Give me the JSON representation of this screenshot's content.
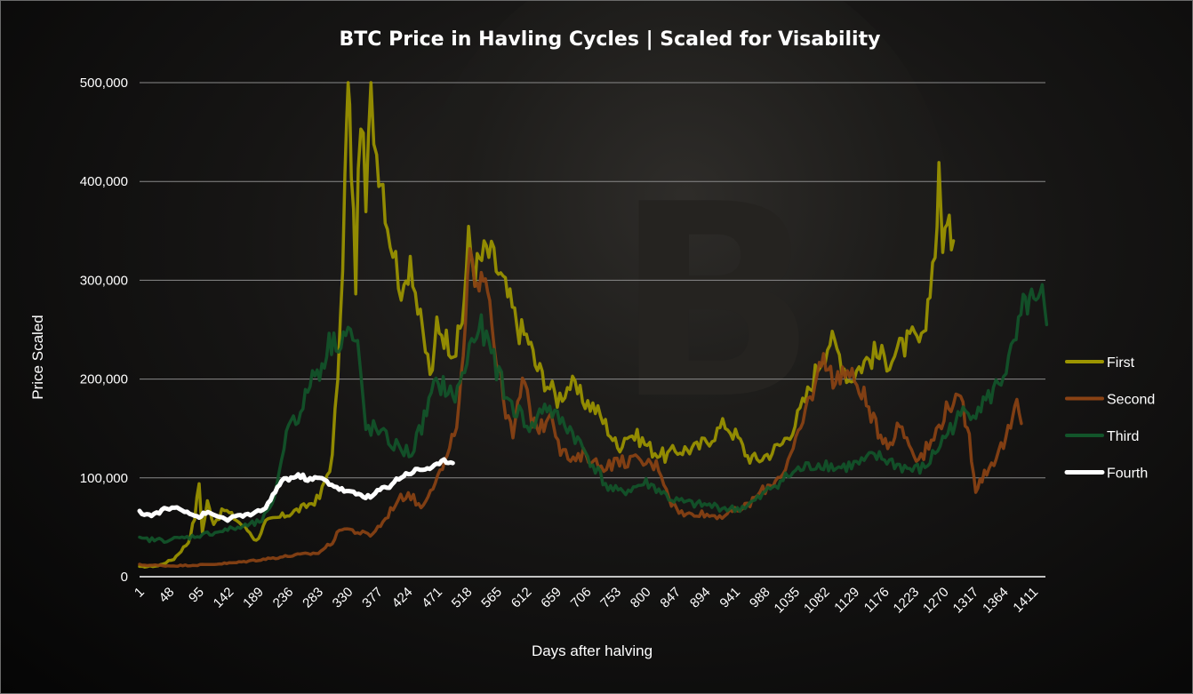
{
  "chart_data": {
    "type": "line",
    "title": "BTC Price in Havling Cycles | Scaled for Visability",
    "xlabel": "Days after halving",
    "ylabel": "Price Scaled",
    "xlim": [
      1,
      1430
    ],
    "ylim": [
      0,
      500000
    ],
    "yticks": [
      0,
      100000,
      200000,
      300000,
      400000,
      500000
    ],
    "ytick_labels": [
      "0",
      "100,000",
      "200,000",
      "300,000",
      "400,000",
      "500,000"
    ],
    "xtick_labels": [
      "1",
      "48",
      "95",
      "142",
      "189",
      "236",
      "283",
      "330",
      "377",
      "424",
      "471",
      "518",
      "565",
      "612",
      "659",
      "706",
      "753",
      "800",
      "847",
      "894",
      "941",
      "988",
      "1035",
      "1082",
      "1129",
      "1176",
      "1223",
      "1270",
      "1317",
      "1364",
      "1411"
    ],
    "grid": "horizontal",
    "legend_position": "right",
    "series": [
      {
        "name": "First",
        "color": "#9c9500",
        "points": [
          [
            1,
            10000
          ],
          [
            30,
            11000
          ],
          [
            55,
            18000
          ],
          [
            78,
            35000
          ],
          [
            88,
            60000
          ],
          [
            95,
            95000
          ],
          [
            100,
            45000
          ],
          [
            108,
            75000
          ],
          [
            118,
            55000
          ],
          [
            135,
            68000
          ],
          [
            150,
            60000
          ],
          [
            175,
            45000
          ],
          [
            185,
            36000
          ],
          [
            200,
            55000
          ],
          [
            230,
            62000
          ],
          [
            260,
            70000
          ],
          [
            285,
            80000
          ],
          [
            305,
            120000
          ],
          [
            318,
            250000
          ],
          [
            325,
            400000
          ],
          [
            330,
            500000
          ],
          [
            335,
            420000
          ],
          [
            342,
            300000
          ],
          [
            350,
            480000
          ],
          [
            358,
            370000
          ],
          [
            366,
            490000
          ],
          [
            375,
            430000
          ],
          [
            385,
            400000
          ],
          [
            392,
            360000
          ],
          [
            405,
            320000
          ],
          [
            418,
            280000
          ],
          [
            428,
            330000
          ],
          [
            440,
            270000
          ],
          [
            452,
            230000
          ],
          [
            463,
            200000
          ],
          [
            470,
            260000
          ],
          [
            485,
            240000
          ],
          [
            500,
            230000
          ],
          [
            510,
            260000
          ],
          [
            520,
            340000
          ],
          [
            530,
            310000
          ],
          [
            548,
            330000
          ],
          [
            560,
            320000
          ],
          [
            578,
            290000
          ],
          [
            600,
            250000
          ],
          [
            615,
            240000
          ],
          [
            625,
            215000
          ],
          [
            640,
            200000
          ],
          [
            660,
            180000
          ],
          [
            680,
            195000
          ],
          [
            700,
            180000
          ],
          [
            720,
            170000
          ],
          [
            740,
            150000
          ],
          [
            755,
            130000
          ],
          [
            770,
            145000
          ],
          [
            790,
            140000
          ],
          [
            810,
            128000
          ],
          [
            830,
            122000
          ],
          [
            850,
            128000
          ],
          [
            880,
            130000
          ],
          [
            900,
            140000
          ],
          [
            925,
            155000
          ],
          [
            945,
            140000
          ],
          [
            960,
            122000
          ],
          [
            975,
            118000
          ],
          [
            995,
            125000
          ],
          [
            1015,
            135000
          ],
          [
            1035,
            155000
          ],
          [
            1055,
            185000
          ],
          [
            1075,
            220000
          ],
          [
            1090,
            240000
          ],
          [
            1105,
            225000
          ],
          [
            1120,
            200000
          ],
          [
            1140,
            215000
          ],
          [
            1160,
            225000
          ],
          [
            1180,
            220000
          ],
          [
            1200,
            230000
          ],
          [
            1220,
            240000
          ],
          [
            1238,
            235000
          ],
          [
            1248,
            300000
          ],
          [
            1256,
            330000
          ],
          [
            1262,
            400000
          ],
          [
            1268,
            345000
          ],
          [
            1275,
            350000
          ],
          [
            1285,
            340000
          ]
        ]
      },
      {
        "name": "Second",
        "color": "#8a4214",
        "points": [
          [
            1,
            12000
          ],
          [
            50,
            11000
          ],
          [
            100,
            12000
          ],
          [
            150,
            14000
          ],
          [
            200,
            18000
          ],
          [
            250,
            22000
          ],
          [
            283,
            24000
          ],
          [
            305,
            35000
          ],
          [
            320,
            50000
          ],
          [
            345,
            45000
          ],
          [
            365,
            42000
          ],
          [
            385,
            55000
          ],
          [
            405,
            75000
          ],
          [
            425,
            85000
          ],
          [
            445,
            70000
          ],
          [
            460,
            90000
          ],
          [
            475,
            105000
          ],
          [
            490,
            125000
          ],
          [
            505,
            170000
          ],
          [
            515,
            250000
          ],
          [
            522,
            330000
          ],
          [
            530,
            280000
          ],
          [
            540,
            320000
          ],
          [
            550,
            300000
          ],
          [
            560,
            240000
          ],
          [
            575,
            180000
          ],
          [
            590,
            140000
          ],
          [
            605,
            200000
          ],
          [
            620,
            160000
          ],
          [
            635,
            150000
          ],
          [
            650,
            170000
          ],
          [
            665,
            130000
          ],
          [
            685,
            115000
          ],
          [
            705,
            125000
          ],
          [
            725,
            112000
          ],
          [
            750,
            115000
          ],
          [
            775,
            118000
          ],
          [
            800,
            115000
          ],
          [
            820,
            112000
          ],
          [
            840,
            75000
          ],
          [
            860,
            62000
          ],
          [
            880,
            65000
          ],
          [
            900,
            62000
          ],
          [
            920,
            62000
          ],
          [
            940,
            66000
          ],
          [
            960,
            72000
          ],
          [
            980,
            85000
          ],
          [
            1000,
            95000
          ],
          [
            1020,
            110000
          ],
          [
            1040,
            140000
          ],
          [
            1055,
            175000
          ],
          [
            1070,
            200000
          ],
          [
            1080,
            230000
          ],
          [
            1095,
            195000
          ],
          [
            1110,
            210000
          ],
          [
            1125,
            200000
          ],
          [
            1140,
            190000
          ],
          [
            1155,
            160000
          ],
          [
            1170,
            145000
          ],
          [
            1185,
            135000
          ],
          [
            1200,
            155000
          ],
          [
            1215,
            135000
          ],
          [
            1230,
            120000
          ],
          [
            1250,
            135000
          ],
          [
            1270,
            165000
          ],
          [
            1285,
            180000
          ],
          [
            1300,
            170000
          ],
          [
            1310,
            140000
          ],
          [
            1320,
            90000
          ],
          [
            1330,
            100000
          ],
          [
            1345,
            115000
          ],
          [
            1360,
            130000
          ],
          [
            1375,
            150000
          ],
          [
            1385,
            175000
          ],
          [
            1392,
            155000
          ]
        ]
      },
      {
        "name": "Third",
        "color": "#12552a",
        "points": [
          [
            1,
            38000
          ],
          [
            40,
            37000
          ],
          [
            80,
            40000
          ],
          [
            120,
            45000
          ],
          [
            160,
            50000
          ],
          [
            190,
            55000
          ],
          [
            210,
            70000
          ],
          [
            225,
            120000
          ],
          [
            240,
            165000
          ],
          [
            255,
            160000
          ],
          [
            270,
            200000
          ],
          [
            285,
            210000
          ],
          [
            300,
            235000
          ],
          [
            315,
            240000
          ],
          [
            330,
            250000
          ],
          [
            345,
            230000
          ],
          [
            358,
            150000
          ],
          [
            370,
            150000
          ],
          [
            390,
            140000
          ],
          [
            410,
            130000
          ],
          [
            430,
            125000
          ],
          [
            450,
            160000
          ],
          [
            465,
            190000
          ],
          [
            480,
            195000
          ],
          [
            495,
            180000
          ],
          [
            510,
            200000
          ],
          [
            525,
            240000
          ],
          [
            540,
            250000
          ],
          [
            560,
            220000
          ],
          [
            580,
            180000
          ],
          [
            600,
            165000
          ],
          [
            620,
            150000
          ],
          [
            640,
            175000
          ],
          [
            660,
            160000
          ],
          [
            680,
            150000
          ],
          [
            700,
            130000
          ],
          [
            720,
            110000
          ],
          [
            740,
            90000
          ],
          [
            760,
            85000
          ],
          [
            780,
            90000
          ],
          [
            800,
            95000
          ],
          [
            820,
            88000
          ],
          [
            840,
            78000
          ],
          [
            860,
            75000
          ],
          [
            880,
            73000
          ],
          [
            900,
            72000
          ],
          [
            920,
            70000
          ],
          [
            940,
            68000
          ],
          [
            960,
            72000
          ],
          [
            980,
            80000
          ],
          [
            1000,
            92000
          ],
          [
            1020,
            100000
          ],
          [
            1040,
            108000
          ],
          [
            1060,
            112000
          ],
          [
            1080,
            115000
          ],
          [
            1100,
            110000
          ],
          [
            1120,
            112000
          ],
          [
            1140,
            115000
          ],
          [
            1160,
            122000
          ],
          [
            1180,
            118000
          ],
          [
            1200,
            112000
          ],
          [
            1220,
            108000
          ],
          [
            1240,
            110000
          ],
          [
            1260,
            130000
          ],
          [
            1280,
            150000
          ],
          [
            1300,
            165000
          ],
          [
            1320,
            170000
          ],
          [
            1340,
            180000
          ],
          [
            1360,
            200000
          ],
          [
            1380,
            230000
          ],
          [
            1395,
            270000
          ],
          [
            1405,
            280000
          ],
          [
            1415,
            270000
          ],
          [
            1425,
            280000
          ],
          [
            1432,
            255000
          ]
        ]
      },
      {
        "name": "Fourth",
        "color": "#ffffff",
        "points": [
          [
            1,
            65000
          ],
          [
            20,
            62000
          ],
          [
            40,
            68000
          ],
          [
            60,
            70000
          ],
          [
            80,
            65000
          ],
          [
            95,
            60000
          ],
          [
            105,
            65000
          ],
          [
            120,
            62000
          ],
          [
            140,
            58000
          ],
          [
            160,
            62000
          ],
          [
            180,
            63000
          ],
          [
            200,
            70000
          ],
          [
            215,
            85000
          ],
          [
            225,
            98000
          ],
          [
            240,
            100000
          ],
          [
            255,
            102000
          ],
          [
            270,
            98000
          ],
          [
            285,
            100000
          ],
          [
            300,
            95000
          ],
          [
            320,
            88000
          ],
          [
            335,
            85000
          ],
          [
            350,
            83000
          ],
          [
            365,
            80000
          ],
          [
            380,
            88000
          ],
          [
            395,
            92000
          ],
          [
            410,
            100000
          ],
          [
            425,
            105000
          ],
          [
            440,
            108000
          ],
          [
            455,
            110000
          ],
          [
            470,
            112000
          ],
          [
            485,
            118000
          ],
          [
            495,
            115000
          ]
        ]
      }
    ]
  }
}
